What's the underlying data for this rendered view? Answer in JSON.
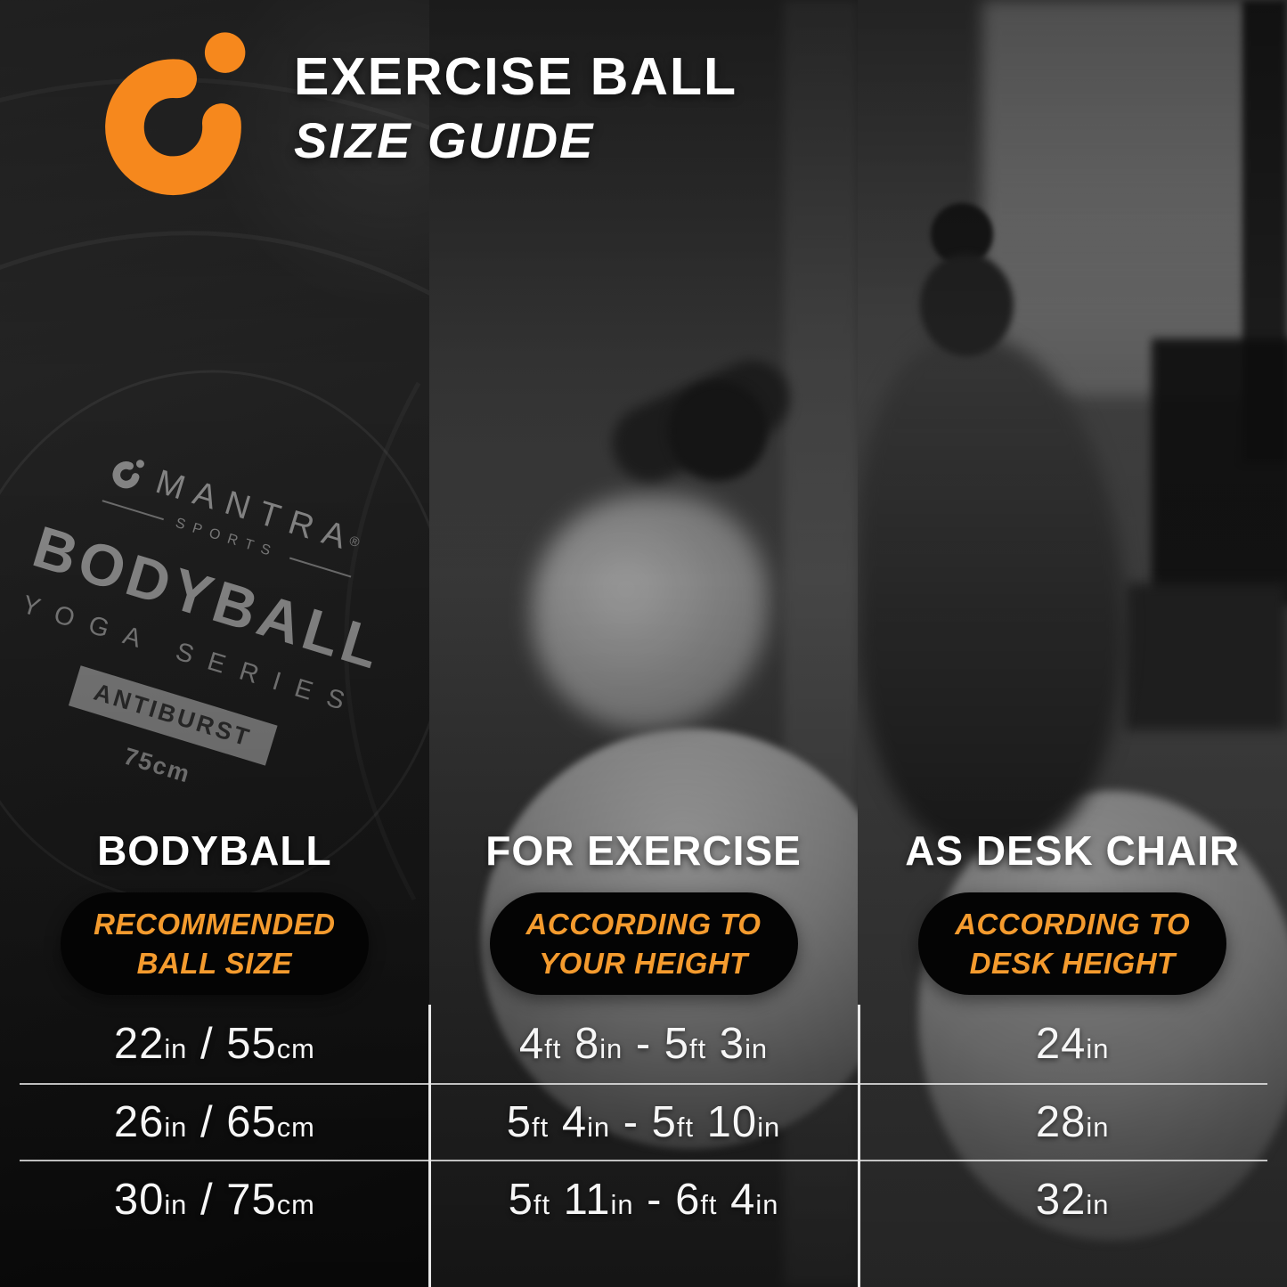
{
  "colors": {
    "accent": "#f6881d",
    "pill_text": "#f49b2e"
  },
  "header": {
    "title_line1": "EXERCISE BALL",
    "title_line2": "SIZE GUIDE"
  },
  "ball_print": {
    "brand": "MANTRA",
    "reg_mark": "®",
    "brand_sub": "SPORTS",
    "product": "BODYBALL",
    "series": "YOGA SERIES",
    "badge": "ANTIBURST",
    "size_label": "75cm"
  },
  "columns": [
    {
      "header": "BODYBALL",
      "pill": [
        "RECOMMENDED",
        "BALL SIZE"
      ]
    },
    {
      "header": "FOR EXERCISE",
      "pill": [
        "ACCORDING TO",
        "YOUR HEIGHT"
      ]
    },
    {
      "header": "AS DESK CHAIR",
      "pill": [
        "ACCORDING TO",
        "DESK HEIGHT"
      ]
    }
  ],
  "table": {
    "rows": [
      {
        "cells": [
          "22[in] / 55[cm]",
          "4[ft] 8[in] - 5[ft] 3[in]",
          "24[in]"
        ]
      },
      {
        "cells": [
          "26[in] / 65[cm]",
          "5[ft] 4[in] - 5[ft] 10[in]",
          "28[in]"
        ]
      },
      {
        "cells": [
          "30[in] / 75[cm]",
          "5[ft] 11[in] - 6[ft] 4[in]",
          "32[in]"
        ]
      }
    ]
  }
}
